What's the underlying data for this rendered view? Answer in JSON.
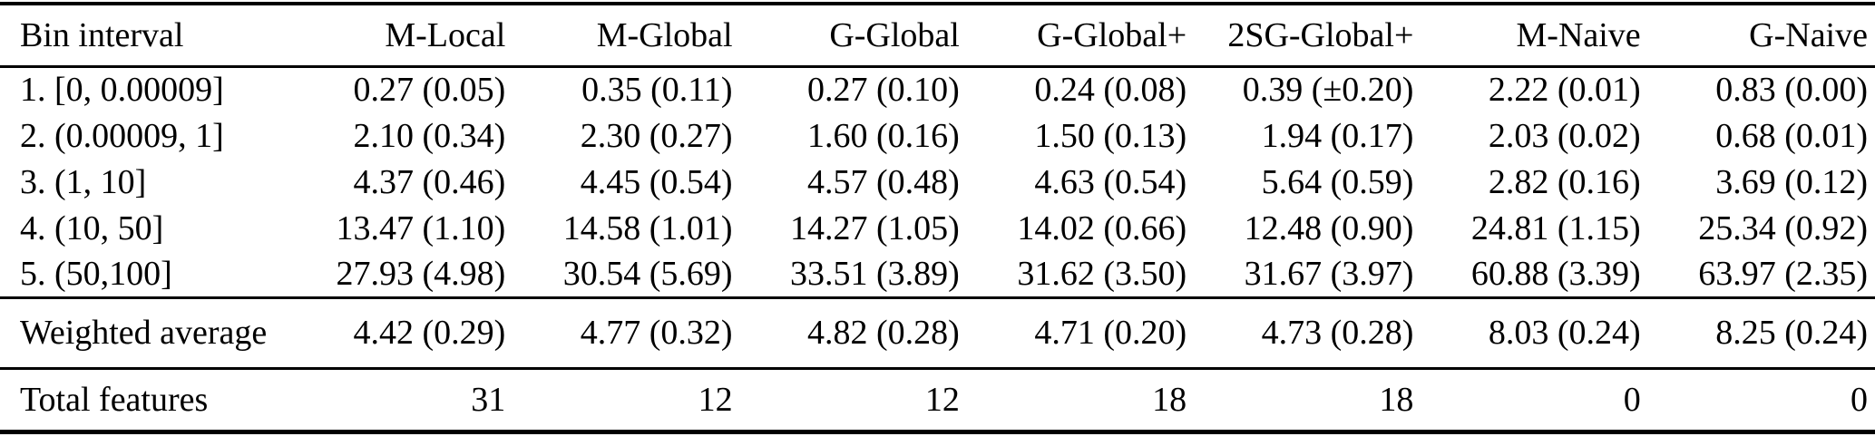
{
  "table": {
    "columns": [
      "Bin interval",
      "M-Local",
      "M-Global",
      "G-Global",
      "G-Global+",
      "2SG-Global+",
      "M-Naive",
      "G-Naive"
    ],
    "rows": [
      {
        "label": "1. [0, 0.00009]",
        "values": [
          "0.27 (0.05)",
          "0.35 (0.11)",
          "0.27 (0.10)",
          "0.24 (0.08)",
          "0.39 (±0.20)",
          "2.22 (0.01)",
          "0.83 (0.00)"
        ]
      },
      {
        "label": "2. (0.00009, 1]",
        "values": [
          "2.10 (0.34)",
          "2.30 (0.27)",
          "1.60 (0.16)",
          "1.50 (0.13)",
          "1.94 (0.17)",
          "2.03 (0.02)",
          "0.68 (0.01)"
        ]
      },
      {
        "label": "3. (1, 10]",
        "values": [
          "4.37 (0.46)",
          "4.45 (0.54)",
          "4.57 (0.48)",
          "4.63 (0.54)",
          "5.64 (0.59)",
          "2.82 (0.16)",
          "3.69 (0.12)"
        ]
      },
      {
        "label": "4. (10, 50]",
        "values": [
          "13.47 (1.10)",
          "14.58 (1.01)",
          "14.27 (1.05)",
          "14.02 (0.66)",
          "12.48 (0.90)",
          "24.81 (1.15)",
          "25.34 (0.92)"
        ]
      },
      {
        "label": "5. (50,100]",
        "values": [
          "27.93 (4.98)",
          "30.54 (5.69)",
          "33.51 (3.89)",
          "31.62 (3.50)",
          "31.67 (3.97)",
          "60.88 (3.39)",
          "63.97 (2.35)"
        ]
      }
    ],
    "weighted_average": {
      "label": "Weighted average",
      "values": [
        "4.42 (0.29)",
        "4.77 (0.32)",
        "4.82 (0.28)",
        "4.71 (0.20)",
        "4.73 (0.28)",
        "8.03 (0.24)",
        "8.25 (0.24)"
      ]
    },
    "total_features": {
      "label": "Total features",
      "values": [
        "31",
        "12",
        "12",
        "18",
        "18",
        "0",
        "0"
      ]
    },
    "colors": {
      "text": "#000000",
      "background": "#ffffff",
      "rule": "#000000"
    }
  }
}
